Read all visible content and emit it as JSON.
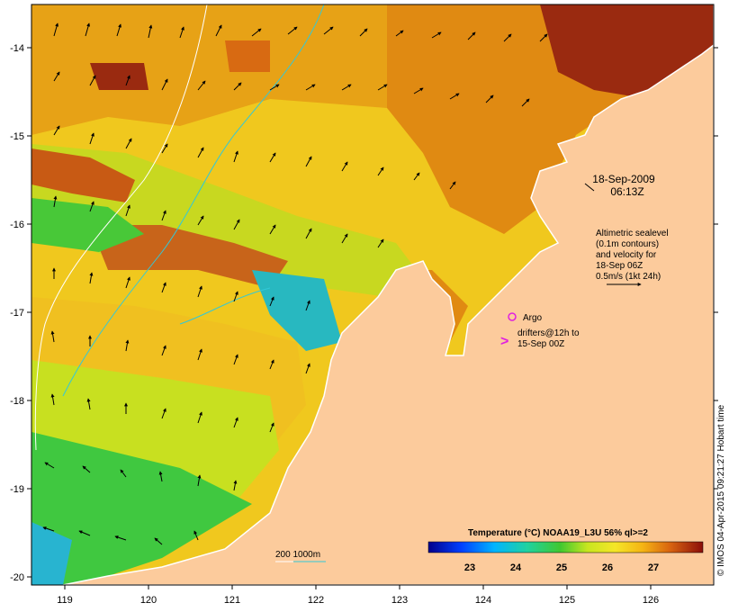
{
  "map": {
    "date": "18-Sep-2009",
    "time": "06:13Z",
    "altimetry_note": [
      "Altimetric sealevel",
      "(0.1m contours)",
      "and velocity for",
      "18-Sep 06Z",
      "0.5m/s (1kt 24h)"
    ],
    "argo_label": "Argo",
    "drifters_note": [
      "drifters@12h to",
      "15-Sep 00Z"
    ],
    "isobath_label": "200  1000m",
    "colorbar_title": "Temperature (°C) NOAA19_L3U 56% ql>=2",
    "colorbar_ticks": [
      "23",
      "24",
      "25",
      "26",
      "27"
    ],
    "x_ticks": [
      "119",
      "120",
      "121",
      "122",
      "123",
      "124",
      "125",
      "126"
    ],
    "y_ticks": [
      "-14",
      "-15",
      "-16",
      "-17",
      "-18",
      "-19",
      "-20"
    ],
    "credit": "© IMOS 04-Apr-2015 09:21:27 Hobart time",
    "colors": {
      "land": "#fccb9c",
      "warm": "#e39a14",
      "hot": "#8b1a0e",
      "mid": "#f5c31a",
      "cool": "#c8e61e",
      "green": "#42c83a",
      "cyan": "#22b4c8",
      "contour": "#32c8d8",
      "argo": "#e020e0"
    }
  }
}
